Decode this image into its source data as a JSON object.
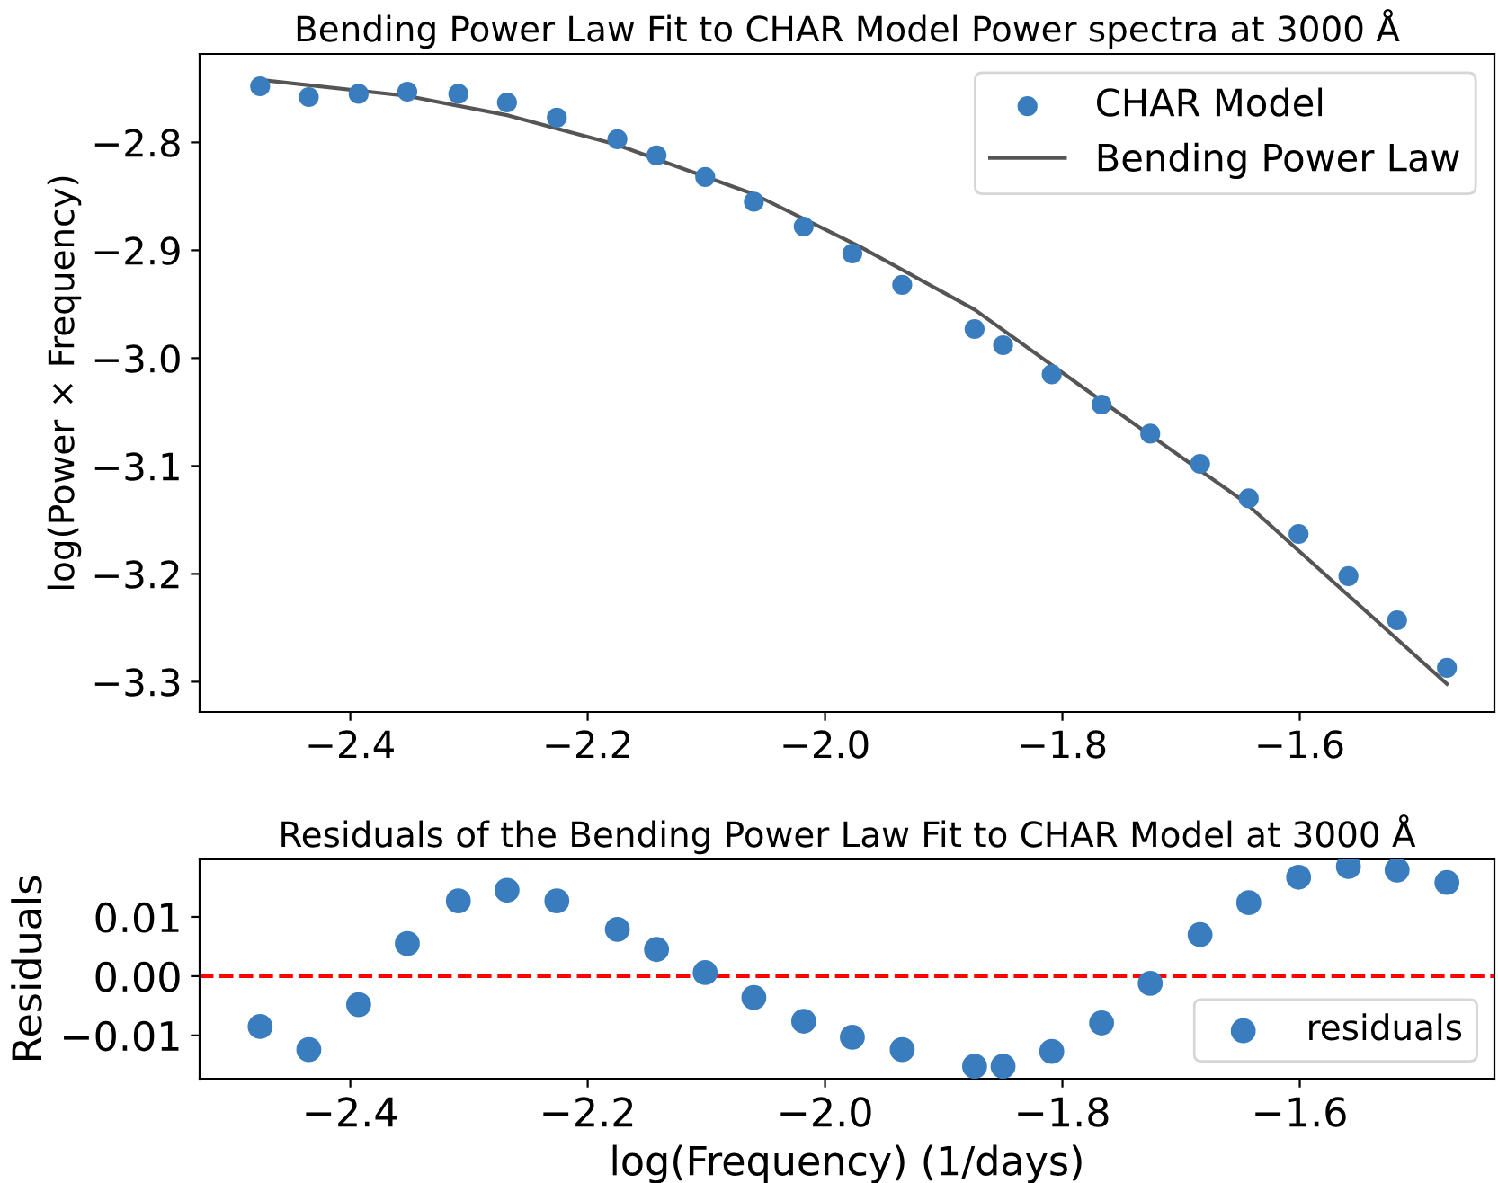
{
  "chart_data": [
    {
      "type": "scatter",
      "title": "Bending Power Law Fit to CHAR Model Power spectra at 3000 Å",
      "ylabel": "log(Power × Frequency)",
      "xlim": [
        -2.527,
        -1.436
      ],
      "xticks": [
        {
          "value": -2.4,
          "label": "−2.4"
        },
        {
          "value": -2.2,
          "label": "−2.2"
        },
        {
          "value": -2.0,
          "label": "−2.0"
        },
        {
          "value": -1.8,
          "label": "−1.8"
        },
        {
          "value": -1.6,
          "label": "−1.6"
        }
      ],
      "ylim": [
        -3.328,
        -2.718
      ],
      "yticks": [
        {
          "value": -2.8,
          "label": "−2.8"
        },
        {
          "value": -2.9,
          "label": "−2.9"
        },
        {
          "value": -3.0,
          "label": "−3.0"
        },
        {
          "value": -3.1,
          "label": "−3.1"
        },
        {
          "value": -3.2,
          "label": "−3.2"
        },
        {
          "value": -3.3,
          "label": "−3.3"
        }
      ],
      "legend": "top right",
      "grid": false,
      "series": [
        {
          "name": "CHAR Model",
          "marker": "circle",
          "color": "#3a7dbf",
          "x": [
            -2.476,
            -2.435,
            -2.393,
            -2.352,
            -2.309,
            -2.268,
            -2.226,
            -2.175,
            -2.142,
            -2.101,
            -2.06,
            -2.018,
            -1.977,
            -1.935,
            -1.874,
            -1.85,
            -1.809,
            -1.767,
            -1.726,
            -1.684,
            -1.643,
            -1.601,
            -1.559,
            -1.518,
            -1.476
          ],
          "values": [
            -2.748,
            -2.758,
            -2.755,
            -2.753,
            -2.755,
            -2.763,
            -2.777,
            -2.797,
            -2.812,
            -2.832,
            -2.855,
            -2.878,
            -2.903,
            -2.932,
            -2.973,
            -2.988,
            -3.015,
            -3.043,
            -3.07,
            -3.098,
            -3.13,
            -3.163,
            -3.202,
            -3.243,
            -3.287
          ]
        },
        {
          "name": "Bending Power Law",
          "type": "line",
          "line_style": "solid",
          "color": "#555555",
          "x": [
            -2.476,
            -2.352,
            -2.267,
            -2.176,
            -2.06,
            -1.97,
            -1.874,
            -1.769,
            -1.648,
            -1.557,
            -1.476
          ],
          "values": [
            -2.742,
            -2.757,
            -2.775,
            -2.802,
            -2.848,
            -2.897,
            -2.955,
            -3.038,
            -3.132,
            -3.222,
            -3.302
          ]
        }
      ]
    },
    {
      "type": "scatter",
      "title": "Residuals of the Bending Power Law Fit to CHAR Model at 3000 Å",
      "xlabel": "log(Frequency) (1/days)",
      "ylabel": "Residuals",
      "xlim": [
        -2.527,
        -1.436
      ],
      "xticks": [
        {
          "value": -2.4,
          "label": "−2.4"
        },
        {
          "value": -2.2,
          "label": "−2.2"
        },
        {
          "value": -2.0,
          "label": "−2.0"
        },
        {
          "value": -1.8,
          "label": "−1.8"
        },
        {
          "value": -1.6,
          "label": "−1.6"
        }
      ],
      "ylim": [
        -0.0173,
        0.0197
      ],
      "yticks": [
        {
          "value": 0.01,
          "label": "0.01"
        },
        {
          "value": 0.0,
          "label": "0.00"
        },
        {
          "value": -0.01,
          "label": "−0.01"
        }
      ],
      "legend": "bottom right",
      "grid": false,
      "ref_lines": [
        {
          "axis": "y",
          "value": 0,
          "color": "#ff0000",
          "line_style": "dashed"
        }
      ],
      "series": [
        {
          "name": "residuals",
          "marker": "circle",
          "color": "#3a7dbf",
          "x": [
            -2.476,
            -2.435,
            -2.393,
            -2.352,
            -2.309,
            -2.268,
            -2.226,
            -2.175,
            -2.142,
            -2.101,
            -2.06,
            -2.018,
            -1.977,
            -1.935,
            -1.874,
            -1.85,
            -1.809,
            -1.767,
            -1.726,
            -1.684,
            -1.643,
            -1.601,
            -1.559,
            -1.518,
            -1.476
          ],
          "values": [
            -0.0085,
            -0.0124,
            -0.0048,
            0.0055,
            0.0127,
            0.0145,
            0.0127,
            0.0079,
            0.0045,
            0.0006,
            -0.0036,
            -0.0076,
            -0.0103,
            -0.0124,
            -0.0152,
            -0.0152,
            -0.0127,
            -0.0079,
            -0.0012,
            0.007,
            0.0124,
            0.0167,
            0.0185,
            0.0179,
            0.0158
          ]
        }
      ]
    }
  ]
}
